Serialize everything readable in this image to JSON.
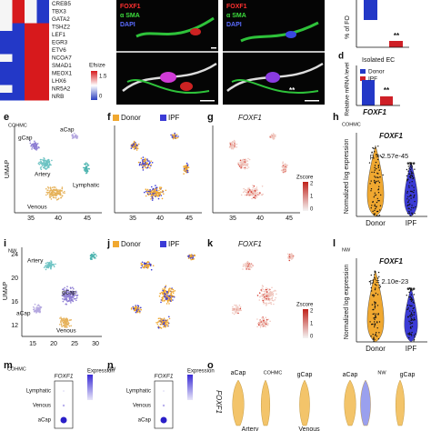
{
  "panel_labels": {
    "d": "d",
    "e": "e",
    "f": "f",
    "g": "g",
    "h": "h",
    "i": "i",
    "j": "j",
    "k": "k",
    "l": "l",
    "m": "m",
    "n": "n",
    "o": "o"
  },
  "heatmap": {
    "genes": [
      "CREB5",
      "TBX3",
      "GATA2",
      "TSHZ2",
      "LEF1",
      "EGR3",
      "ETV6",
      "NCOA7",
      "SMAD1",
      "MEOX1",
      "LHX6",
      "NR5A2",
      "NRB"
    ],
    "legend_title": "Efsize",
    "legend_ticks": [
      "1.5",
      "0"
    ]
  },
  "microscopy": {
    "stains": [
      "FOXF1",
      "α SMA",
      "DAPI"
    ],
    "sig": "**"
  },
  "panel_c": {
    "ylabel": "% of FO",
    "sig": "**"
  },
  "panel_d": {
    "title": "Isolated EC",
    "legend": [
      "Donor",
      "IPF"
    ],
    "ylabel": "Relative mRNA level",
    "xlabel": "FOXF1",
    "sig": "**"
  },
  "panel_e": {
    "cohort": "COHMC",
    "ylabel": "UMAP",
    "xticks": [
      "35",
      "40",
      "45"
    ],
    "clusters": [
      "gCap",
      "aCap",
      "Artery",
      "Lymphatic",
      "Venous"
    ]
  },
  "panel_f": {
    "legend": [
      "Donor",
      "IPF"
    ],
    "xticks": [
      "35",
      "40",
      "45"
    ]
  },
  "panel_g": {
    "title": "FOXF1",
    "xticks": [
      "35",
      "40",
      "45"
    ],
    "colorbar_title": "Zscore",
    "colorbar_ticks": [
      "2",
      "1",
      "0"
    ]
  },
  "panel_h": {
    "cohort": "COHMC",
    "title": "FOXF1",
    "pvalue": "p = 2.57e-45",
    "sig": "***",
    "ylabel": "Normalized log expression",
    "groups": [
      "Donor",
      "IPF"
    ]
  },
  "panel_i": {
    "cohort": "NW",
    "yticks": [
      "24",
      "20",
      "16",
      "12"
    ],
    "xticks": [
      "15",
      "20",
      "25",
      "30"
    ],
    "ylabel": "UMAP",
    "clusters": [
      "Artery",
      "gCap",
      "aCap",
      "Venous"
    ]
  },
  "panel_j": {
    "legend": [
      "Donor",
      "IPF"
    ]
  },
  "panel_k": {
    "title": "FOXF1",
    "colorbar_title": "Zscore",
    "colorbar_ticks": [
      "2",
      "1",
      "0"
    ]
  },
  "panel_l": {
    "cohort": "NW",
    "title": "FOXF1",
    "pvalue": "p = 2.10e-23",
    "sig": "***",
    "ylabel": "Normalized log expression",
    "groups": [
      "Donor",
      "IPF"
    ]
  },
  "panel_m": {
    "cohort": "COHMC",
    "title": "FOXF1",
    "rows": [
      "Lymphatic",
      "Venous",
      "aCap"
    ],
    "legend_title": "Expression"
  },
  "panel_n": {
    "cohort": "NW",
    "title": "FOXF1",
    "rows": [
      "Lymphatic",
      "Venous",
      "aCap"
    ],
    "legend_title": "Expression"
  },
  "panel_o": {
    "titles": [
      "aCap",
      "COHMC",
      "gCap",
      "aCap",
      "NW",
      "gCap"
    ],
    "ylabel": "FOXF1",
    "xlabels": [
      "Artery",
      "Venous"
    ]
  }
}
